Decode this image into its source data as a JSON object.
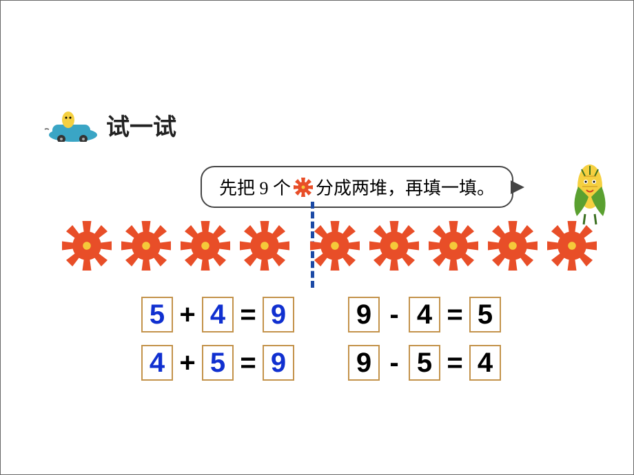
{
  "title": "试一试",
  "bubble": {
    "part1": "先把 9 个",
    "part2": "分成两堆，再填一填。"
  },
  "gear_color": "#e84e28",
  "gear_center": "#f5c93a",
  "divider_color": "#1c4aa5",
  "box_border": "#c3924a",
  "colors": {
    "blue": "#1030d0",
    "black": "#000000"
  },
  "gears": {
    "total": 9,
    "left_count": 4,
    "right_count": 5
  },
  "equations": [
    {
      "left": {
        "a": "5",
        "op": "+",
        "b": "4",
        "c": "9",
        "colors": [
          "blue",
          "blue",
          "blue"
        ]
      },
      "right": {
        "a": "9",
        "op": "-",
        "b": "4",
        "c": "5",
        "colors": [
          "black",
          "black",
          "black"
        ]
      }
    },
    {
      "left": {
        "a": "4",
        "op": "+",
        "b": "5",
        "c": "9",
        "colors": [
          "blue",
          "blue",
          "blue"
        ]
      },
      "right": {
        "a": "9",
        "op": "-",
        "b": "5",
        "c": "4",
        "colors": [
          "black",
          "black",
          "black"
        ]
      }
    }
  ],
  "car": {
    "body_color": "#3aa5c5",
    "driver_color": "#f5d040"
  },
  "corn": {
    "kernel_color": "#f5d040",
    "husk_color": "#5aa030"
  }
}
